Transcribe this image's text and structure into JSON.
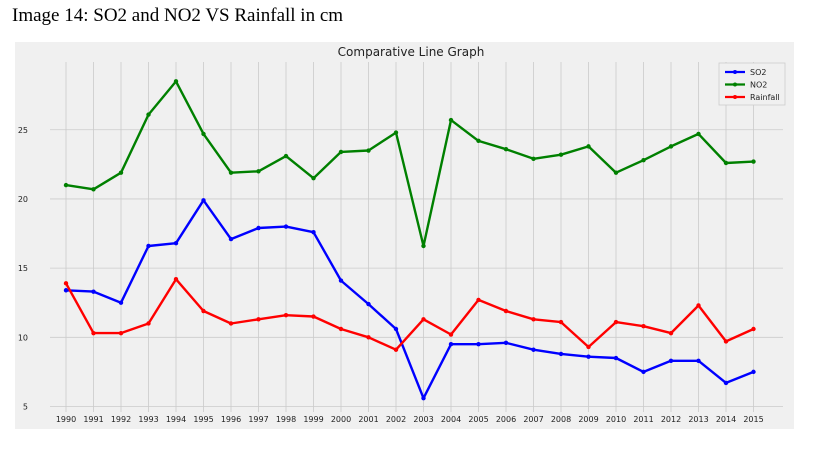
{
  "caption": "Image 14: SO2 and NO2 VS Rainfall in cm",
  "chart_data": {
    "type": "line",
    "title": "Comparative Line Graph",
    "xlabel": "",
    "ylabel": "",
    "x": [
      "1990",
      "1991",
      "1992",
      "1993",
      "1994",
      "1995",
      "1996",
      "1997",
      "1998",
      "1999",
      "2000",
      "2001",
      "2002",
      "2003",
      "2004",
      "2005",
      "2006",
      "2007",
      "2008",
      "2009",
      "2010",
      "2011",
      "2012",
      "2013",
      "2014",
      "2015"
    ],
    "yticks": [
      5,
      10,
      15,
      20,
      25
    ],
    "ylim": [
      4.6,
      29.9
    ],
    "grid": true,
    "legend_position": "top-right",
    "series": [
      {
        "name": "SO2",
        "color": "#0000ff",
        "values": [
          13.4,
          13.3,
          12.5,
          16.6,
          16.8,
          19.9,
          17.1,
          17.9,
          18.0,
          17.6,
          14.1,
          12.4,
          10.6,
          5.6,
          9.5,
          9.5,
          9.6,
          9.1,
          8.8,
          8.6,
          8.5,
          7.5,
          8.3,
          8.3,
          6.7,
          7.5
        ]
      },
      {
        "name": "NO2",
        "color": "#008000",
        "values": [
          21.0,
          20.7,
          21.9,
          26.1,
          28.5,
          24.7,
          21.9,
          22.0,
          23.1,
          21.5,
          23.4,
          23.5,
          24.8,
          16.6,
          25.7,
          24.2,
          23.6,
          22.9,
          23.2,
          23.8,
          21.9,
          22.8,
          23.8,
          24.7,
          22.6,
          22.7
        ]
      },
      {
        "name": "Rainfall",
        "color": "#ff0000",
        "values": [
          13.9,
          10.3,
          10.3,
          11.0,
          14.2,
          11.9,
          11.0,
          11.3,
          11.6,
          11.5,
          10.6,
          10.0,
          9.1,
          11.3,
          10.2,
          12.7,
          11.9,
          11.3,
          11.1,
          9.3,
          11.1,
          10.8,
          10.3,
          12.3,
          9.7,
          10.6
        ]
      }
    ]
  }
}
